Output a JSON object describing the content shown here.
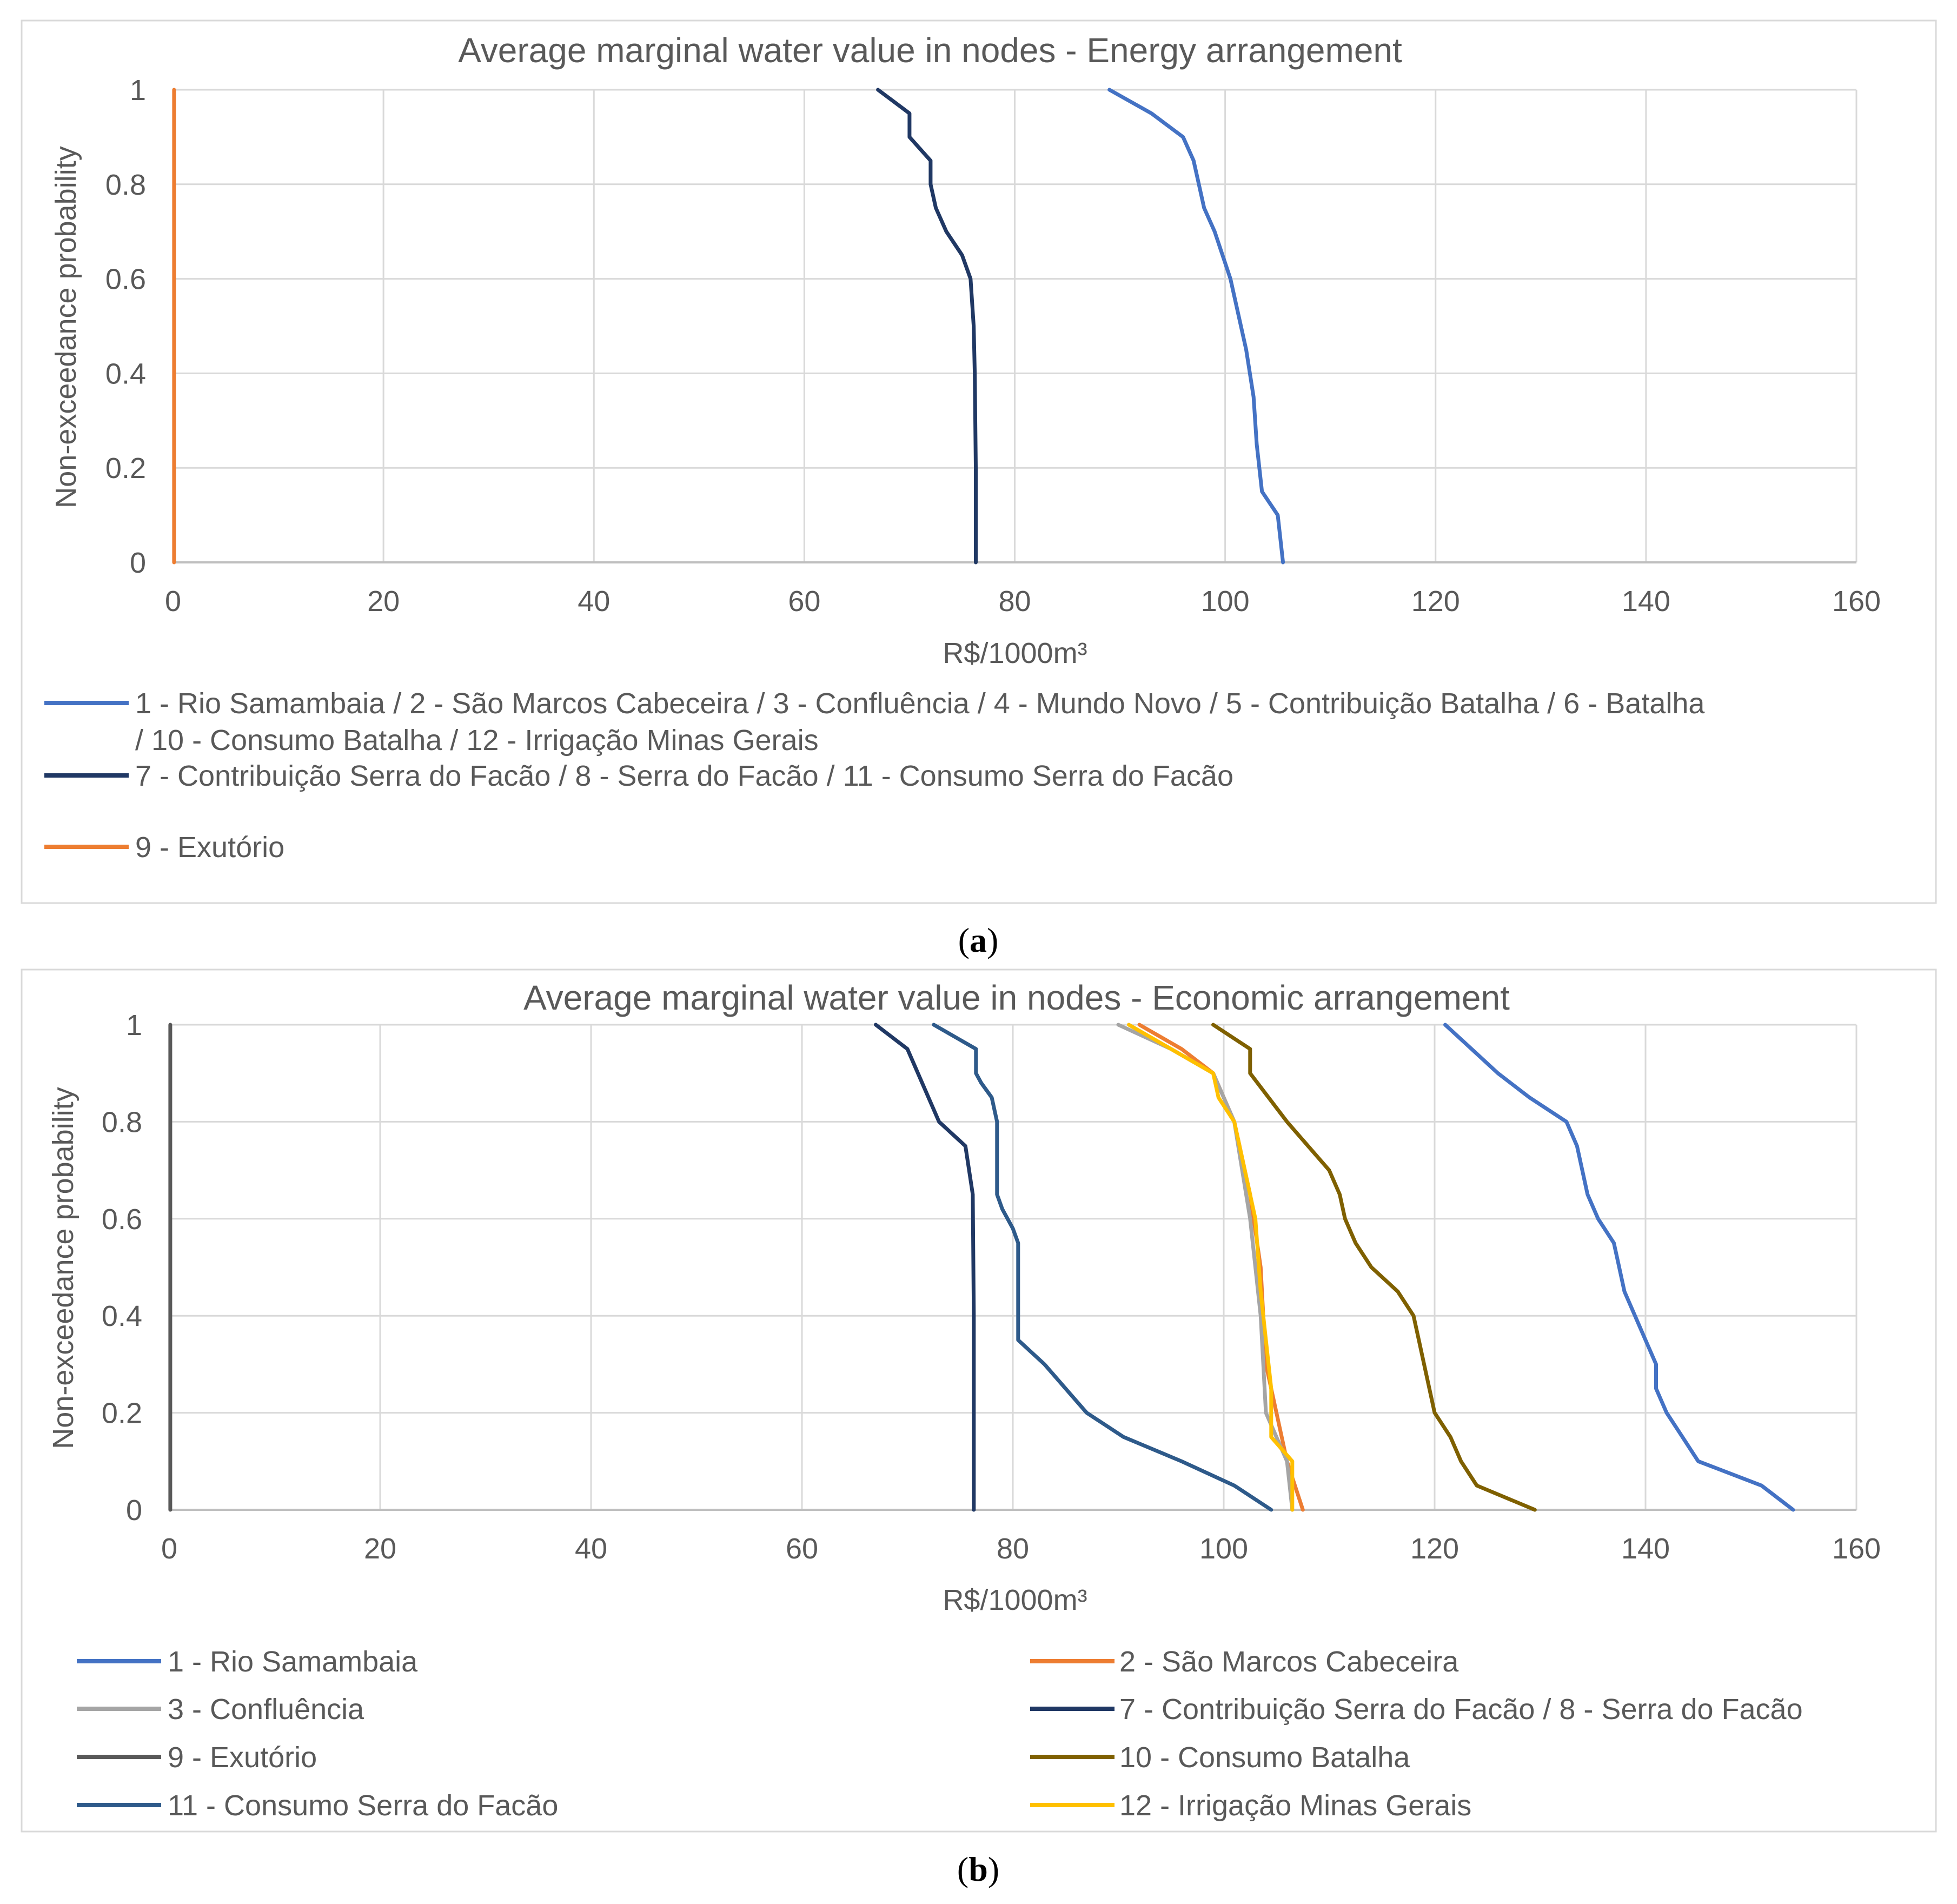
{
  "panels": [
    {
      "label_open": "(",
      "label_letter": "a",
      "label_close": ")"
    },
    {
      "label_open": "(",
      "label_letter": "b",
      "label_close": ")"
    }
  ],
  "chart_data": [
    {
      "type": "line",
      "title": "Average marginal water value in nodes - Energy arrangement",
      "xlabel": "R$/1000m³",
      "ylabel": "Non-exceedance probability",
      "xlim": [
        0,
        160
      ],
      "ylim": [
        0,
        1
      ],
      "x_ticks": [
        "0",
        "20",
        "40",
        "60",
        "80",
        "100",
        "120",
        "140",
        "160"
      ],
      "y_ticks": [
        "0",
        "0.2",
        "0.4",
        "0.6",
        "0.8",
        "1"
      ],
      "grid": true,
      "legend_placement": "bottom",
      "series": [
        {
          "name_lines": [
            "1 - Rio Samambaia  / 2 - São Marcos Cabeceira / 3 - Confluência / 4 - Mundo Novo / 5 - Contribuição Batalha / 6 - Batalha",
            "/ 10 - Consumo Batalha / 12 - Irrigação Minas Gerais"
          ],
          "color": "#4472C4",
          "points": [
            [
              105.5,
              0
            ],
            [
              105,
              0.1
            ],
            [
              103.5,
              0.15
            ],
            [
              103,
              0.25
            ],
            [
              102.7,
              0.35
            ],
            [
              102,
              0.45
            ],
            [
              101.5,
              0.5
            ],
            [
              101,
              0.55
            ],
            [
              100.5,
              0.6
            ],
            [
              99,
              0.7
            ],
            [
              98,
              0.75
            ],
            [
              97.5,
              0.8
            ],
            [
              97,
              0.85
            ],
            [
              96,
              0.9
            ],
            [
              93,
              0.95
            ],
            [
              89,
              1
            ]
          ]
        },
        {
          "name_lines": [
            "7 - Contribuição Serra do Facão / 8 - Serra do Facão / 11 - Consumo Serra do Facão"
          ],
          "color": "#203864",
          "points": [
            [
              76.3,
              0
            ],
            [
              76.3,
              0.2
            ],
            [
              76.2,
              0.4
            ],
            [
              76.1,
              0.5
            ],
            [
              75.8,
              0.6
            ],
            [
              75,
              0.65
            ],
            [
              73.5,
              0.7
            ],
            [
              72.5,
              0.75
            ],
            [
              72,
              0.8
            ],
            [
              72,
              0.85
            ],
            [
              70,
              0.9
            ],
            [
              70,
              0.95
            ],
            [
              67,
              1
            ]
          ]
        },
        {
          "name_lines": [
            "9 - Exutório"
          ],
          "color": "#ED7D31",
          "points": [
            [
              0.1,
              0
            ],
            [
              0.1,
              1
            ]
          ]
        }
      ]
    },
    {
      "type": "line",
      "title": "Average marginal water value in nodes - Economic arrangement",
      "xlabel": "R$/1000m³",
      "ylabel": "Non-exceedance probability",
      "xlim": [
        0,
        160
      ],
      "ylim": [
        0,
        1
      ],
      "x_ticks": [
        "0",
        "20",
        "40",
        "60",
        "80",
        "100",
        "120",
        "140",
        "160"
      ],
      "y_ticks": [
        "0",
        "0.2",
        "0.4",
        "0.6",
        "0.8",
        "1"
      ],
      "grid": true,
      "legend_placement": "bottom",
      "series": [
        {
          "name": "1 - Rio Samambaia",
          "color": "#4472C4",
          "points": [
            [
              154,
              0
            ],
            [
              151,
              0.05
            ],
            [
              145,
              0.1
            ],
            [
              143.5,
              0.15
            ],
            [
              142,
              0.2
            ],
            [
              141,
              0.25
            ],
            [
              141,
              0.3
            ],
            [
              140,
              0.35
            ],
            [
              139,
              0.4
            ],
            [
              138,
              0.45
            ],
            [
              137.5,
              0.5
            ],
            [
              137,
              0.55
            ],
            [
              135.5,
              0.6
            ],
            [
              134.5,
              0.65
            ],
            [
              133.5,
              0.75
            ],
            [
              132.5,
              0.8
            ],
            [
              129,
              0.85
            ],
            [
              126,
              0.9
            ],
            [
              123.5,
              0.95
            ],
            [
              121,
              1
            ]
          ]
        },
        {
          "name": "2 - São Marcos Cabeceira",
          "color": "#ED7D31",
          "points": [
            [
              107.5,
              0
            ],
            [
              106,
              0.1
            ],
            [
              105,
              0.2
            ],
            [
              104,
              0.3
            ],
            [
              103.5,
              0.5
            ],
            [
              102.5,
              0.65
            ],
            [
              102,
              0.7
            ],
            [
              101,
              0.8
            ],
            [
              99,
              0.9
            ],
            [
              96,
              0.95
            ],
            [
              92,
              1
            ]
          ]
        },
        {
          "name": "3 - Confluência",
          "color": "#A5A5A5",
          "points": [
            [
              106.5,
              0
            ],
            [
              106,
              0.1
            ],
            [
              104,
              0.2
            ],
            [
              103.5,
              0.4
            ],
            [
              102.5,
              0.6
            ],
            [
              101,
              0.8
            ],
            [
              99,
              0.9
            ],
            [
              95,
              0.95
            ],
            [
              90,
              1
            ]
          ]
        },
        {
          "name": "7 - Contribuição Serra do Facão / 8 - Serra do Facão",
          "color": "#203864",
          "points": [
            [
              76.3,
              0
            ],
            [
              76.3,
              0.4
            ],
            [
              76.2,
              0.65
            ],
            [
              75.5,
              0.75
            ],
            [
              73,
              0.8
            ],
            [
              71,
              0.9
            ],
            [
              70,
              0.95
            ],
            [
              67,
              1
            ]
          ]
        },
        {
          "name": "9 - Exutório",
          "color": "#595959",
          "points": [
            [
              0.1,
              0
            ],
            [
              0.1,
              1
            ]
          ]
        },
        {
          "name": "10 - Consumo Batalha",
          "color": "#7F6000",
          "points": [
            [
              129.5,
              0
            ],
            [
              124,
              0.05
            ],
            [
              122.5,
              0.1
            ],
            [
              121.5,
              0.15
            ],
            [
              120,
              0.2
            ],
            [
              119,
              0.3
            ],
            [
              118.5,
              0.35
            ],
            [
              118,
              0.4
            ],
            [
              116.5,
              0.45
            ],
            [
              114,
              0.5
            ],
            [
              112.5,
              0.55
            ],
            [
              111.5,
              0.6
            ],
            [
              111,
              0.65
            ],
            [
              110,
              0.7
            ],
            [
              108,
              0.75
            ],
            [
              106,
              0.8
            ],
            [
              102.5,
              0.9
            ],
            [
              102.5,
              0.95
            ],
            [
              99,
              1
            ]
          ]
        },
        {
          "name": "11 - Consumo Serra do Facão",
          "color": "#2E5A8A",
          "points": [
            [
              104.5,
              0
            ],
            [
              101,
              0.05
            ],
            [
              96,
              0.1
            ],
            [
              90.5,
              0.15
            ],
            [
              87,
              0.2
            ],
            [
              85,
              0.25
            ],
            [
              83,
              0.3
            ],
            [
              80.5,
              0.35
            ],
            [
              80.5,
              0.55
            ],
            [
              80,
              0.58
            ],
            [
              79,
              0.62
            ],
            [
              78.5,
              0.65
            ],
            [
              78.5,
              0.8
            ],
            [
              78,
              0.85
            ],
            [
              77,
              0.88
            ],
            [
              76.5,
              0.9
            ],
            [
              76.5,
              0.95
            ],
            [
              72.5,
              1
            ]
          ]
        },
        {
          "name": "12 - Irrigação Minas Gerais",
          "color": "#FFC000",
          "points": [
            [
              106.5,
              0
            ],
            [
              106.5,
              0.1
            ],
            [
              104.5,
              0.15
            ],
            [
              104.5,
              0.25
            ],
            [
              104,
              0.35
            ],
            [
              103.5,
              0.45
            ],
            [
              103,
              0.6
            ],
            [
              102,
              0.7
            ],
            [
              101,
              0.8
            ],
            [
              99.5,
              0.85
            ],
            [
              99,
              0.9
            ],
            [
              95,
              0.95
            ],
            [
              91,
              1
            ]
          ]
        }
      ]
    }
  ]
}
